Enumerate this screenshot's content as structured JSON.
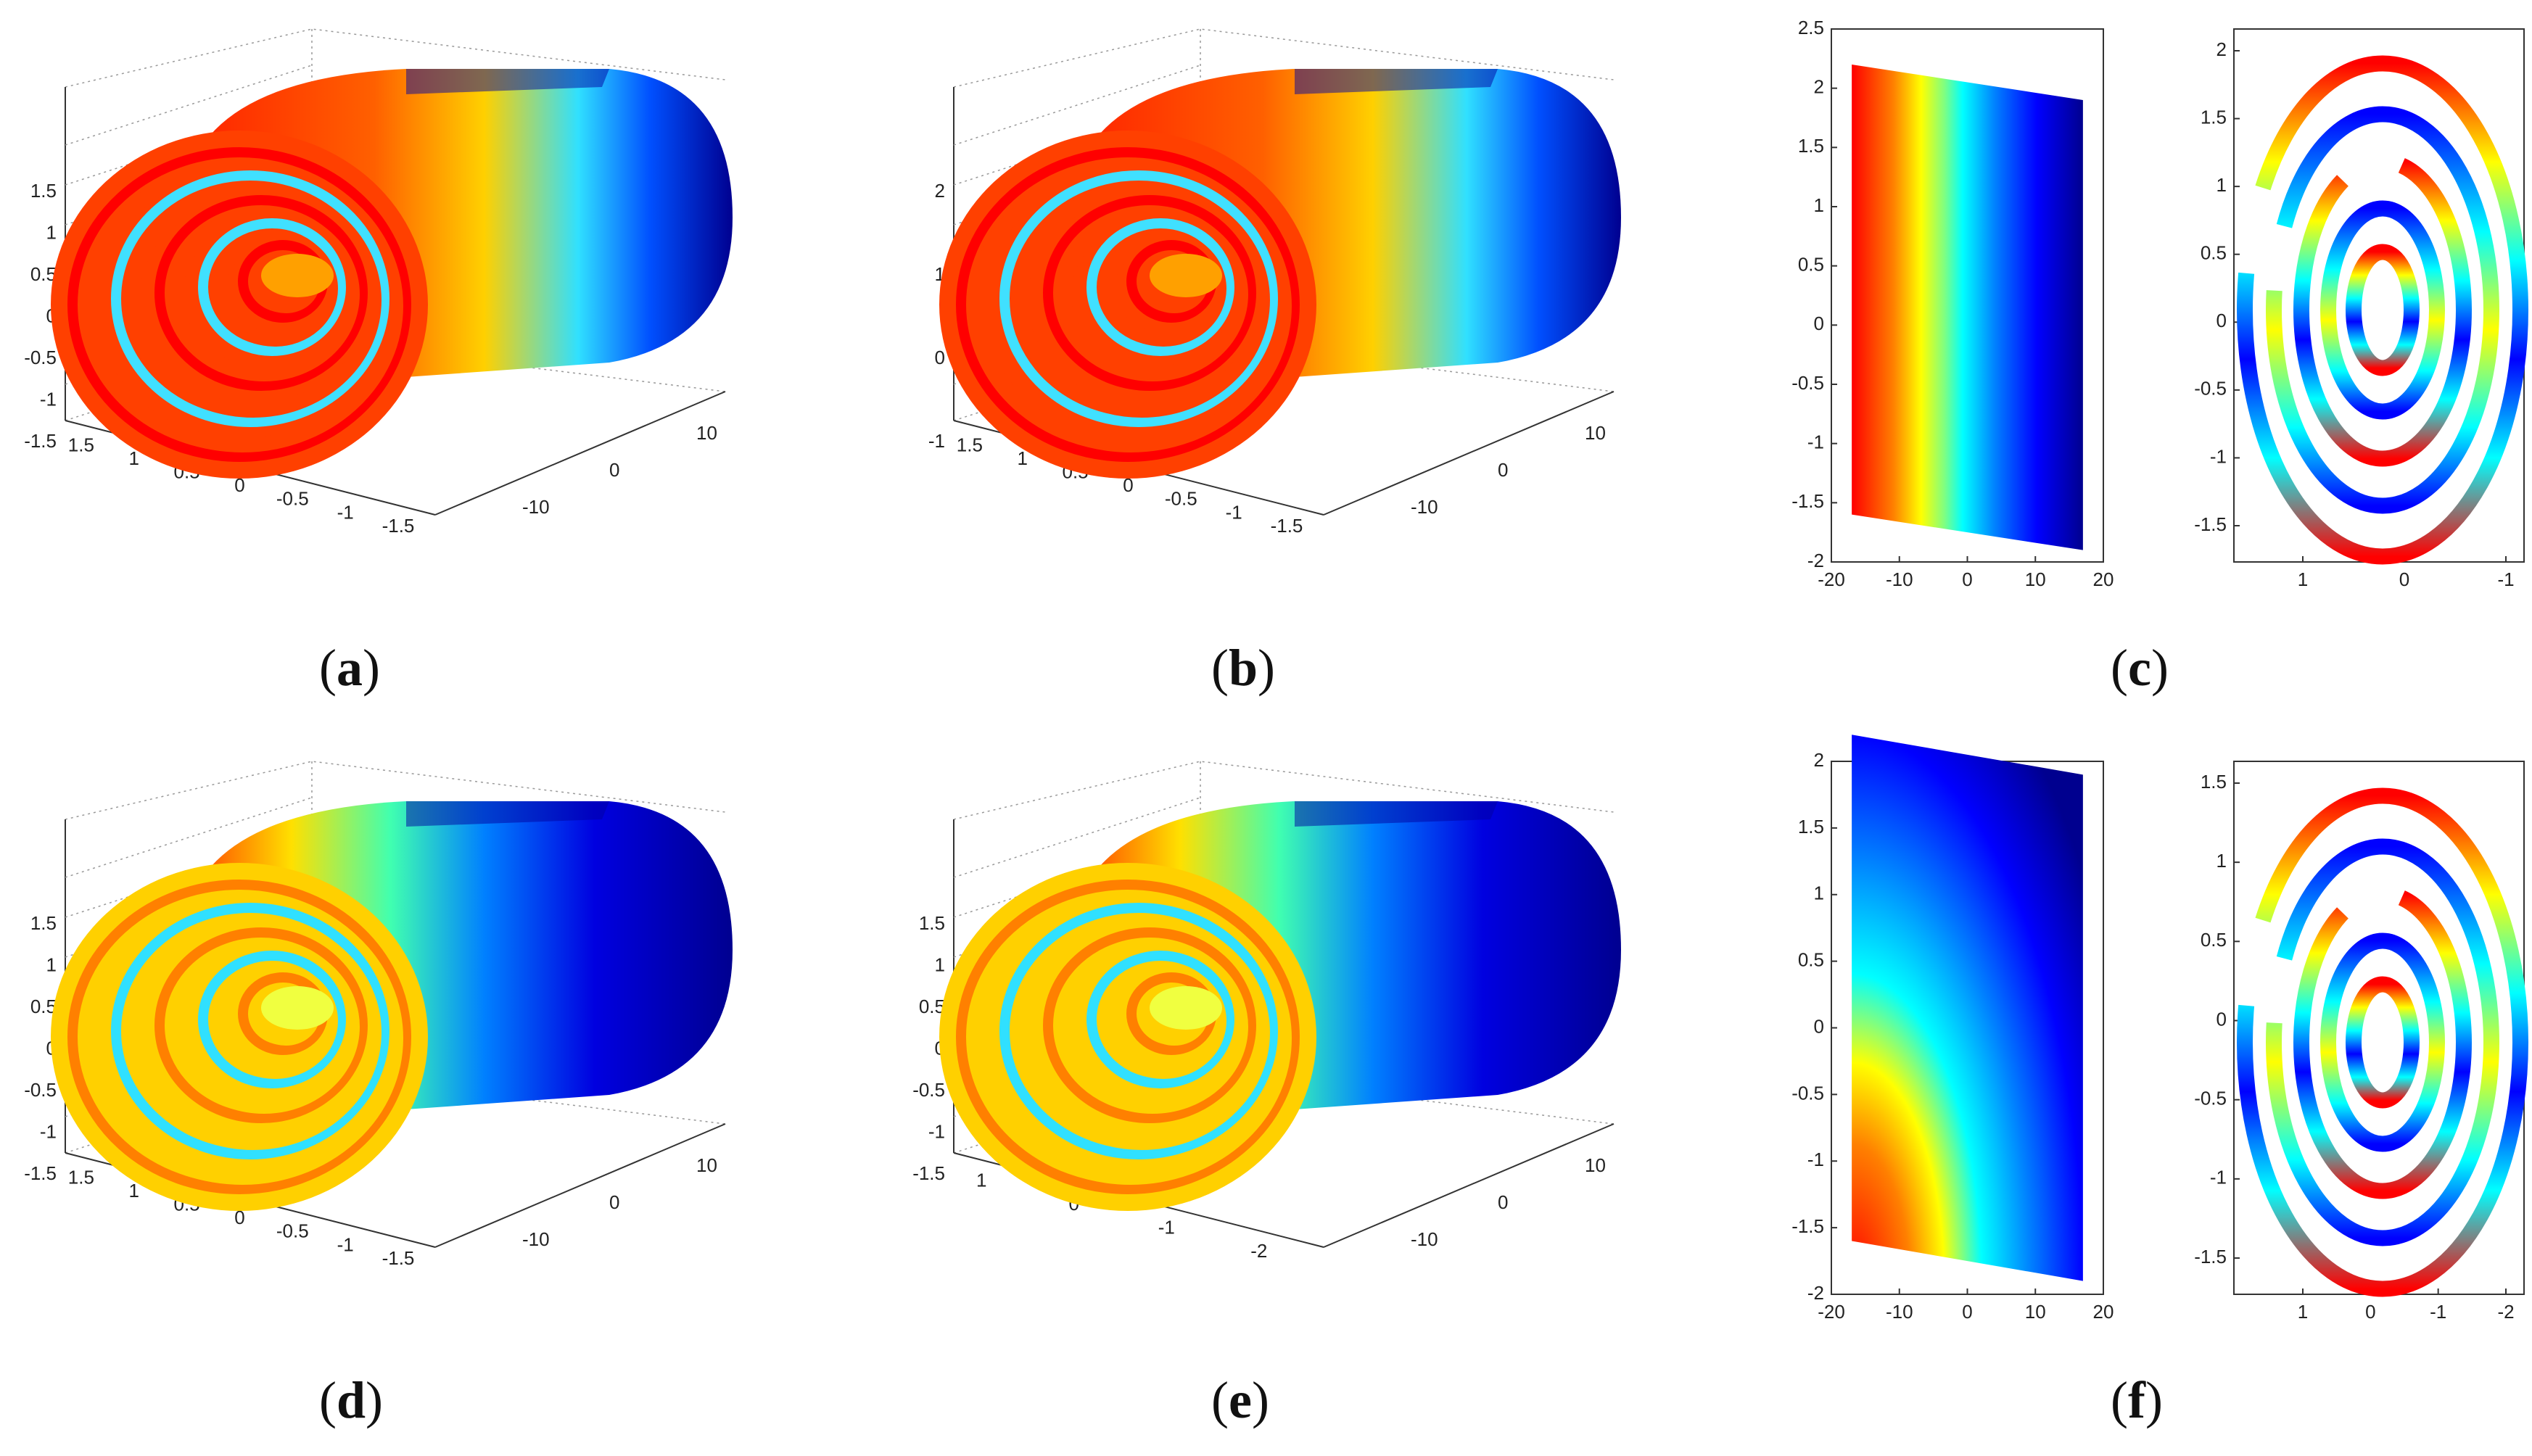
{
  "captions": [
    {
      "id": "a",
      "open": "(",
      "letter": "a",
      "close": ")"
    },
    {
      "id": "b",
      "open": "(",
      "letter": "b",
      "close": ")"
    },
    {
      "id": "c",
      "open": "(",
      "letter": "c",
      "close": ")"
    },
    {
      "id": "d",
      "open": "(",
      "letter": "d",
      "close": ")"
    },
    {
      "id": "e",
      "open": "(",
      "letter": "e",
      "close": ")"
    },
    {
      "id": "f",
      "open": "(",
      "letter": "f",
      "close": ")"
    }
  ],
  "colormap": [
    "#00008f",
    "#0000ff",
    "#0080ff",
    "#00ffff",
    "#80ff80",
    "#ffff00",
    "#ff8000",
    "#ff0000",
    "#800000"
  ],
  "chart_data": [
    {
      "id": "a",
      "type": "surface3d",
      "z_ticks": [
        "1.5",
        "1",
        "0.5",
        "0",
        "-0.5",
        "-1",
        "-1.5"
      ],
      "x_ticks": [
        "1.5",
        "1",
        "0.5",
        "0",
        "-0.5",
        "-1",
        "-1.5"
      ],
      "y_ticks": [
        "10",
        "0",
        "-10"
      ]
    },
    {
      "id": "b",
      "type": "surface3d",
      "z_ticks": [
        "2",
        "1",
        "0",
        "-1"
      ],
      "x_ticks": [
        "1.5",
        "1",
        "0.5",
        "0",
        "-0.5",
        "-1",
        "-1.5"
      ],
      "y_ticks": [
        "10",
        "0",
        "-10"
      ]
    },
    {
      "id": "c_left",
      "type": "heatmap",
      "y_ticks": [
        "2.5",
        "2",
        "1.5",
        "1",
        "0.5",
        "0",
        "-0.5",
        "-1",
        "-1.5",
        "-2"
      ],
      "x_ticks": [
        "-20",
        "-10",
        "0",
        "10",
        "20"
      ],
      "xlim": [
        -20,
        20
      ],
      "ylim": [
        -2,
        2.5
      ]
    },
    {
      "id": "c_right",
      "type": "scatter",
      "y_ticks": [
        "2",
        "1.5",
        "1",
        "0.5",
        "0",
        "-0.5",
        "-1",
        "-1.5"
      ],
      "x_ticks": [
        "1",
        "0",
        "-1"
      ]
    },
    {
      "id": "d",
      "type": "surface3d",
      "z_ticks": [
        "1.5",
        "1",
        "0.5",
        "0",
        "-0.5",
        "-1",
        "-1.5"
      ],
      "x_ticks": [
        "1.5",
        "1",
        "0.5",
        "0",
        "-0.5",
        "-1",
        "-1.5"
      ],
      "y_ticks": [
        "10",
        "0",
        "-10"
      ]
    },
    {
      "id": "e",
      "type": "surface3d",
      "z_ticks": [
        "1.5",
        "1",
        "0.5",
        "0",
        "-0.5",
        "-1",
        "-1.5"
      ],
      "x_ticks": [
        "1",
        "0",
        "-1",
        "-2"
      ],
      "y_ticks": [
        "10",
        "0",
        "-10"
      ]
    },
    {
      "id": "f_left",
      "type": "heatmap",
      "y_ticks": [
        "2",
        "1.5",
        "1",
        "0.5",
        "0",
        "-0.5",
        "-1",
        "-1.5",
        "-2"
      ],
      "x_ticks": [
        "-20",
        "-10",
        "0",
        "10",
        "20"
      ],
      "xlim": [
        -20,
        20
      ],
      "ylim": [
        -2,
        2
      ]
    },
    {
      "id": "f_right",
      "type": "scatter",
      "y_ticks": [
        "1.5",
        "1",
        "0.5",
        "0",
        "-0.5",
        "-1",
        "-1.5"
      ],
      "x_ticks": [
        "1",
        "0",
        "-1",
        "-2"
      ]
    }
  ]
}
